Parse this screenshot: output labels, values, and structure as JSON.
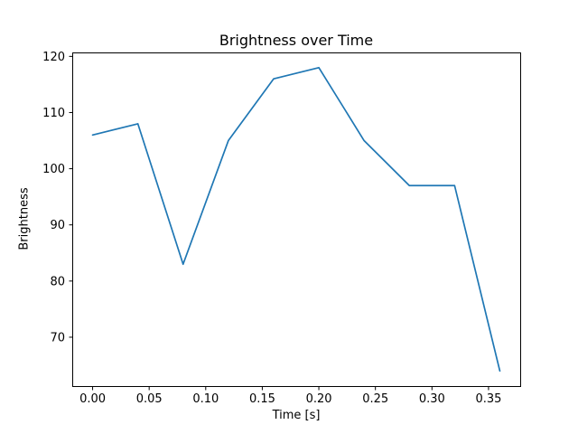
{
  "chart_data": {
    "type": "line",
    "title": "Brightness over Time",
    "xlabel": "Time [s]",
    "ylabel": "Brightness",
    "x": [
      0.0,
      0.04,
      0.08,
      0.12,
      0.16,
      0.2,
      0.24,
      0.28,
      0.32,
      0.36
    ],
    "y": [
      106,
      108,
      83,
      105,
      116,
      118,
      105,
      97,
      97,
      64
    ],
    "xlim": [
      -0.018,
      0.378
    ],
    "ylim": [
      61.3,
      120.7
    ],
    "xtick_values": [
      0.0,
      0.05,
      0.1,
      0.15,
      0.2,
      0.25,
      0.3,
      0.35
    ],
    "xtick_labels": [
      "0.00",
      "0.05",
      "0.10",
      "0.15",
      "0.20",
      "0.25",
      "0.30",
      "0.35"
    ],
    "ytick_values": [
      70,
      80,
      90,
      100,
      110,
      120
    ],
    "ytick_labels": [
      "70",
      "80",
      "90",
      "100",
      "110",
      "120"
    ],
    "line_color": "#1f77b4",
    "background": "#ffffff",
    "grid": false,
    "legend": null
  }
}
